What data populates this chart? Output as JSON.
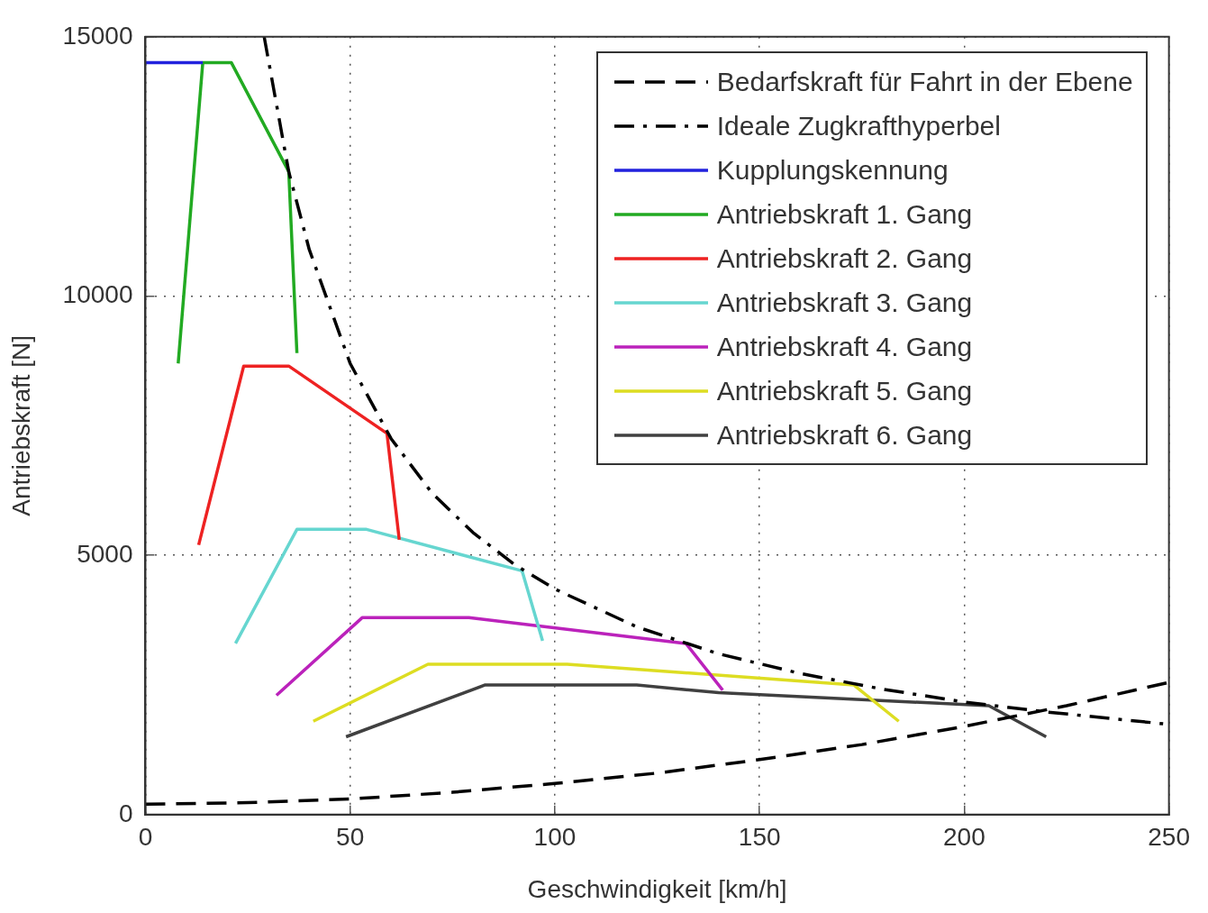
{
  "chart_data": {
    "type": "line",
    "xlabel": "Geschwindigkeit [km/h]",
    "ylabel": "Antriebskraft [N]",
    "xlim": [
      0,
      250
    ],
    "xticks": [
      0,
      50,
      100,
      150,
      200,
      250
    ],
    "ylim": [
      0,
      15000
    ],
    "yticks": [
      0,
      5000,
      10000,
      15000
    ],
    "grid": true,
    "legend": "top right",
    "marker": "none",
    "series": [
      {
        "name": "Bedarfskraft für Fahrt in der Ebene",
        "color": "#000000",
        "line_style": "dashed",
        "x": [
          0,
          25,
          50,
          75,
          100,
          125,
          150,
          175,
          200,
          225,
          250
        ],
        "values": [
          200,
          230,
          300,
          430,
          600,
          800,
          1060,
          1350,
          1700,
          2100,
          2550
        ]
      },
      {
        "name": "Ideale Zugkrafthyperbel",
        "color": "#000000",
        "line_style": "dashdot",
        "x": [
          29,
          35,
          40,
          50,
          60,
          70,
          80,
          90,
          100,
          120,
          140,
          160,
          180,
          200,
          220,
          250
        ],
        "values": [
          15000,
          12400,
          10900,
          8700,
          7250,
          6200,
          5440,
          4830,
          4350,
          3620,
          3100,
          2720,
          2420,
          2170,
          1980,
          1740
        ]
      },
      {
        "name": "Kupplungskennung",
        "color": "#2222dd",
        "line_style": "solid",
        "x": [
          0,
          14
        ],
        "values": [
          14500,
          14500
        ]
      },
      {
        "name": "Antriebskraft 1. Gang",
        "color": "#22aa22",
        "line_style": "solid",
        "x": [
          8,
          14,
          21,
          35,
          37
        ],
        "values": [
          8700,
          14500,
          14500,
          12400,
          8900
        ]
      },
      {
        "name": "Antriebskraft 2. Gang",
        "color": "#ee2222",
        "line_style": "solid",
        "x": [
          13,
          24,
          35,
          59,
          62
        ],
        "values": [
          5200,
          8650,
          8650,
          7350,
          5300
        ]
      },
      {
        "name": "Antriebskraft 3. Gang",
        "color": "#66d6d0",
        "line_style": "solid",
        "x": [
          22,
          37,
          54,
          92,
          97
        ],
        "values": [
          3300,
          5500,
          5500,
          4700,
          3350
        ]
      },
      {
        "name": "Antriebskraft 4. Gang",
        "color": "#bb22bb",
        "line_style": "solid",
        "x": [
          32,
          53,
          79,
          132,
          141
        ],
        "values": [
          2300,
          3800,
          3800,
          3300,
          2400
        ]
      },
      {
        "name": "Antriebskraft 5. Gang",
        "color": "#dddd22",
        "line_style": "solid",
        "x": [
          41,
          69,
          103,
          173,
          184
        ],
        "values": [
          1800,
          2900,
          2900,
          2500,
          1800
        ]
      },
      {
        "name": "Antriebskraft 6. Gang",
        "color": "#404040",
        "line_style": "solid",
        "x": [
          49,
          83,
          120,
          140,
          206,
          220
        ],
        "values": [
          1500,
          2500,
          2500,
          2350,
          2100,
          1500
        ]
      }
    ]
  }
}
